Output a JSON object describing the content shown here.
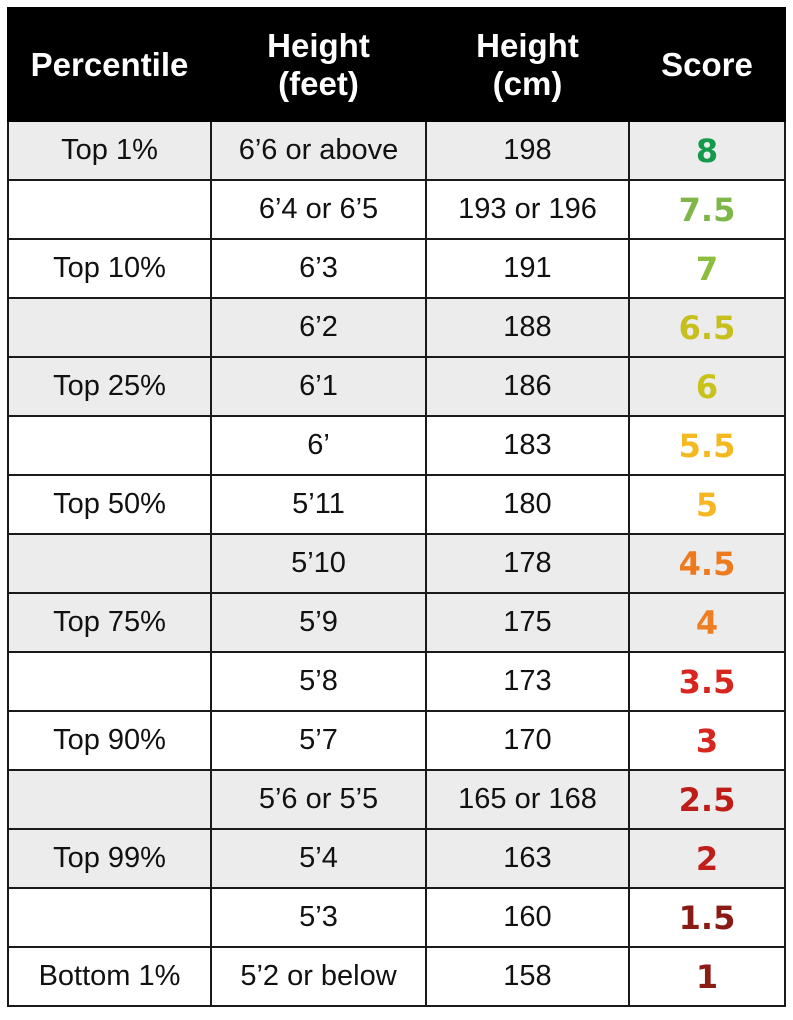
{
  "table": {
    "headers": [
      {
        "line1": "Percentile",
        "line2": ""
      },
      {
        "line1": "Height",
        "line2": "(feet)"
      },
      {
        "line1": "Height",
        "line2": "(cm)"
      },
      {
        "line1": "Score",
        "line2": ""
      }
    ],
    "rows": [
      {
        "percentile": "Top 1%",
        "feet": "6’6 or above",
        "cm": "198",
        "score": "8",
        "score_color": "#139b4a",
        "shaded": true
      },
      {
        "percentile": "",
        "feet": "6’4 or 6’5",
        "cm": "193 or 196",
        "score": "7.5",
        "score_color": "#7fb64a",
        "shaded": false
      },
      {
        "percentile": "Top 10%",
        "feet": "6’3",
        "cm": "191",
        "score": "7",
        "score_color": "#8cbd3f",
        "shaded": false
      },
      {
        "percentile": "",
        "feet": "6’2",
        "cm": "188",
        "score": "6.5",
        "score_color": "#c7bf1d",
        "shaded": true
      },
      {
        "percentile": "Top 25%",
        "feet": "6’1",
        "cm": "186",
        "score": "6",
        "score_color": "#c8c21a",
        "shaded": true
      },
      {
        "percentile": "",
        "feet": "6’",
        "cm": "183",
        "score": "5.5",
        "score_color": "#f4b820",
        "shaded": false
      },
      {
        "percentile": "Top 50%",
        "feet": "5’11",
        "cm": "180",
        "score": "5",
        "score_color": "#f5b622",
        "shaded": false
      },
      {
        "percentile": "",
        "feet": "5’10",
        "cm": "178",
        "score": "4.5",
        "score_color": "#ee7a1e",
        "shaded": true
      },
      {
        "percentile": "Top 75%",
        "feet": "5’9",
        "cm": "175",
        "score": "4",
        "score_color": "#ef7d22",
        "shaded": true
      },
      {
        "percentile": "",
        "feet": "5’8",
        "cm": "173",
        "score": "3.5",
        "score_color": "#d8261f",
        "shaded": false
      },
      {
        "percentile": "Top 90%",
        "feet": "5’7",
        "cm": "170",
        "score": "3",
        "score_color": "#d6261d",
        "shaded": false
      },
      {
        "percentile": "",
        "feet": "5’6 or 5’5",
        "cm": "165 or 168",
        "score": "2.5",
        "score_color": "#bd1c17",
        "shaded": true
      },
      {
        "percentile": "Top 99%",
        "feet": "5’4",
        "cm": "163",
        "score": "2",
        "score_color": "#c01e18",
        "shaded": true
      },
      {
        "percentile": "",
        "feet": "5’3",
        "cm": "160",
        "score": "1.5",
        "score_color": "#8a1a14",
        "shaded": false
      },
      {
        "percentile": "Bottom 1%",
        "feet": "5’2 or below",
        "cm": "158",
        "score": "1",
        "score_color": "#8c1d16",
        "shaded": false
      }
    ]
  }
}
